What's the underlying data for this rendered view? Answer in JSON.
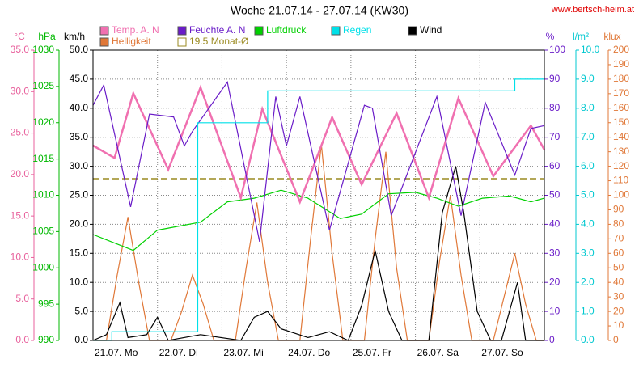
{
  "chart_data": {
    "type": "line",
    "title": "Woche 21.07.14 - 27.07.14 (KW30)",
    "source": "www.bertsch-heim.at",
    "xlim": [
      0,
      168
    ],
    "xticks": [
      {
        "value": 0,
        "label": "21.07. Mo"
      },
      {
        "value": 24,
        "label": "22.07. Di"
      },
      {
        "value": 48,
        "label": "23.07. Mi"
      },
      {
        "value": 72,
        "label": "24.07. Do"
      },
      {
        "value": 96,
        "label": "25.07. Fr"
      },
      {
        "value": 120,
        "label": "26.07. Sa"
      },
      {
        "value": 144,
        "label": "27.07. So"
      }
    ],
    "grid": true,
    "axes": {
      "temp": {
        "label": "°C",
        "color": "#e8609c",
        "lim": [
          0,
          35
        ],
        "ticks": [
          {
            "value": 0,
            "label": "0.0"
          },
          {
            "value": 5,
            "label": "5.0"
          },
          {
            "value": 10,
            "label": "10.0"
          },
          {
            "value": 15,
            "label": "15.0"
          },
          {
            "value": 20,
            "label": "20.0"
          },
          {
            "value": 25,
            "label": "25.0"
          },
          {
            "value": 30,
            "label": "30.0"
          },
          {
            "value": 35,
            "label": "35.0"
          }
        ]
      },
      "pressure": {
        "label": "hPa",
        "color": "#00b800",
        "lim": [
          990,
          1030
        ],
        "ticks": [
          990,
          995,
          1000,
          1005,
          1010,
          1015,
          1020,
          1025,
          1030
        ]
      },
      "wind": {
        "label": "km/h",
        "color": "#000000",
        "lim": [
          0,
          50
        ],
        "ticks": [
          {
            "value": 0,
            "label": "0.0"
          },
          {
            "value": 5,
            "label": "5.0"
          },
          {
            "value": 10,
            "label": "10.0"
          },
          {
            "value": 15,
            "label": "15.0"
          },
          {
            "value": 20,
            "label": "20.0"
          },
          {
            "value": 25,
            "label": "25.0"
          },
          {
            "value": 30,
            "label": "30.0"
          },
          {
            "value": 35,
            "label": "35.0"
          },
          {
            "value": 40,
            "label": "40.0"
          },
          {
            "value": 45,
            "label": "45.0"
          },
          {
            "value": 50,
            "label": "50.0"
          }
        ]
      },
      "humidity": {
        "label": "%",
        "color": "#6a1cc8",
        "lim": [
          0,
          100
        ],
        "ticks": [
          0,
          10,
          20,
          30,
          40,
          50,
          60,
          70,
          80,
          90,
          100
        ]
      },
      "rain": {
        "label": "l/m²",
        "color": "#00c8d0",
        "lim": [
          0,
          10
        ],
        "ticks": [
          {
            "value": 0,
            "label": "0.0"
          },
          {
            "value": 1,
            "label": "1.0"
          },
          {
            "value": 2,
            "label": "2.0"
          },
          {
            "value": 3,
            "label": "3.0"
          },
          {
            "value": 4,
            "label": "4.0"
          },
          {
            "value": 5,
            "label": "5.0"
          },
          {
            "value": 6,
            "label": "6.0"
          },
          {
            "value": 7,
            "label": "7.0"
          },
          {
            "value": 8,
            "label": "8.0"
          },
          {
            "value": 9,
            "label": "9.0"
          },
          {
            "value": 10,
            "label": "10.0"
          }
        ]
      },
      "light": {
        "label": "klux",
        "color": "#e07838",
        "lim": [
          0,
          200
        ],
        "ticks": [
          0,
          10,
          20,
          30,
          40,
          50,
          60,
          70,
          80,
          90,
          100,
          110,
          120,
          130,
          140,
          150,
          160,
          170,
          180,
          190,
          200
        ]
      }
    },
    "reference": {
      "name": "19.5 Monat-Ø",
      "value": 19.5,
      "axis": "temp",
      "color": "#9a8a20"
    },
    "series": [
      {
        "name": "Helligkeit",
        "axis": "light",
        "color": "#e07838",
        "x": [
          0,
          5,
          9,
          13,
          17,
          21,
          29,
          33,
          37,
          41,
          45,
          53,
          57,
          61,
          65,
          69,
          77,
          81,
          85,
          89,
          93,
          101,
          105,
          109,
          113,
          117,
          125,
          129,
          133,
          137,
          141,
          149,
          153,
          157,
          161,
          165,
          168
        ],
        "values": [
          0,
          0,
          45,
          85,
          40,
          0,
          0,
          20,
          45,
          25,
          0,
          0,
          50,
          95,
          40,
          0,
          0,
          70,
          135,
          60,
          0,
          0,
          70,
          130,
          50,
          0,
          0,
          55,
          100,
          45,
          0,
          0,
          30,
          60,
          25,
          0,
          0
        ]
      },
      {
        "name": "Wind",
        "axis": "wind",
        "color": "#000000",
        "x": [
          0,
          5,
          10,
          13,
          20,
          24,
          28,
          40,
          55,
          60,
          65,
          70,
          80,
          88,
          95,
          100,
          105,
          110,
          115,
          125,
          130,
          135,
          138,
          143,
          148,
          152,
          158,
          161,
          168
        ],
        "values": [
          0,
          1,
          6.5,
          0.5,
          1,
          4,
          0,
          1,
          0,
          4,
          5,
          2,
          0.5,
          1.5,
          0,
          6,
          15.5,
          5,
          0,
          0,
          22,
          30,
          22,
          5,
          0,
          0,
          10,
          0,
          0
        ]
      },
      {
        "name": "Luftdruck",
        "axis": "pressure",
        "color": "#00d000",
        "x": [
          0,
          15,
          24,
          40,
          50,
          60,
          70,
          80,
          92,
          100,
          110,
          120,
          128,
          136,
          145,
          155,
          163,
          168
        ],
        "values": [
          1004.6,
          1002.4,
          1005.2,
          1006.3,
          1009.1,
          1009.6,
          1010.7,
          1009.6,
          1006.8,
          1007.4,
          1010.2,
          1010.4,
          1009.6,
          1008.5,
          1009.6,
          1009.9,
          1009.1,
          1009.6
        ]
      },
      {
        "name": "Temp. A. N",
        "axis": "temp",
        "color": "#f070b0",
        "x": [
          0,
          8,
          15,
          28,
          40,
          55,
          63,
          77,
          89,
          100,
          113,
          125,
          136,
          149,
          163,
          168
        ],
        "values": [
          23.5,
          22.0,
          29.8,
          20.6,
          30.5,
          17.2,
          27.9,
          16.7,
          26.9,
          18.8,
          27.4,
          17.2,
          29.2,
          19.8,
          25.9,
          23.0
        ]
      },
      {
        "name": "Feuchte A. N",
        "axis": "humidity",
        "color": "#6a1cc8",
        "x": [
          0,
          4,
          14,
          21,
          30,
          34,
          37,
          50,
          62,
          68,
          72,
          77,
          88,
          101,
          104,
          111,
          128,
          137,
          146,
          157,
          163,
          168
        ],
        "values": [
          81,
          88,
          46,
          78,
          77,
          67,
          72,
          89,
          34,
          84,
          67,
          84,
          38,
          81,
          80,
          43,
          84,
          43,
          82,
          57,
          73,
          74
        ]
      },
      {
        "name": "Regen",
        "axis": "rain",
        "color": "#00e0e8",
        "x": [
          0,
          7,
          7,
          39,
          39,
          65,
          65,
          157,
          157,
          168
        ],
        "values": [
          0,
          0,
          0.3,
          0.3,
          7.5,
          7.5,
          8.6,
          8.6,
          9.0,
          9.0
        ]
      }
    ]
  }
}
